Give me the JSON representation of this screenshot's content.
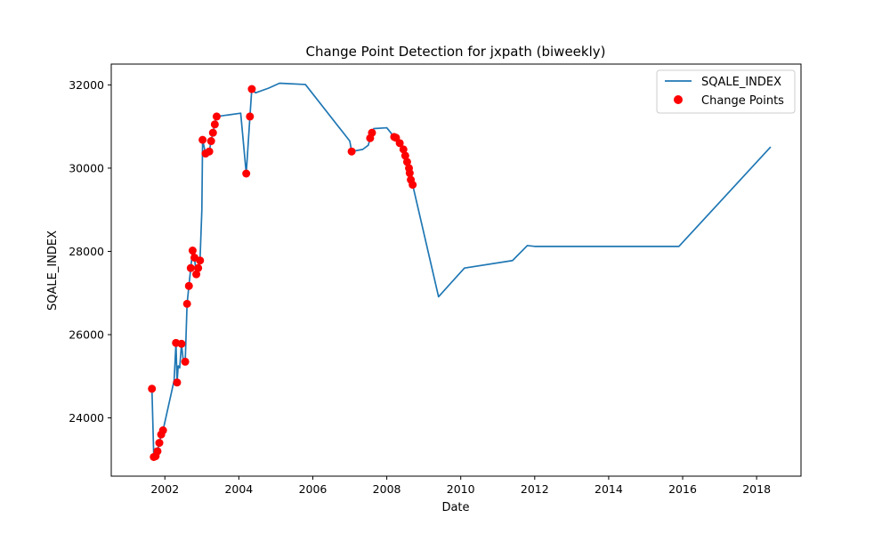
{
  "chart_data": {
    "type": "line",
    "title": "Change Point Detection for jxpath (biweekly)",
    "xlabel": "Date",
    "ylabel": "SQALE_INDEX",
    "xlim": [
      2000.55,
      2019.2
    ],
    "ylim": [
      22600,
      32500
    ],
    "x_ticks": [
      2002,
      2004,
      2006,
      2008,
      2010,
      2012,
      2014,
      2016,
      2018
    ],
    "y_ticks": [
      24000,
      26000,
      28000,
      30000,
      32000
    ],
    "grid": false,
    "legend_position": "top-right",
    "series": [
      {
        "name": "SQALE_INDEX",
        "kind": "line",
        "color": "#1f77b4",
        "points": [
          [
            2001.65,
            24700
          ],
          [
            2001.7,
            23060
          ],
          [
            2001.75,
            23080
          ],
          [
            2001.8,
            23200
          ],
          [
            2001.85,
            23400
          ],
          [
            2001.9,
            23600
          ],
          [
            2001.95,
            23700
          ],
          [
            2002.25,
            24900
          ],
          [
            2002.3,
            25800
          ],
          [
            2002.33,
            24850
          ],
          [
            2002.36,
            25250
          ],
          [
            2002.4,
            25200
          ],
          [
            2002.45,
            25780
          ],
          [
            2002.5,
            25350
          ],
          [
            2002.55,
            25350
          ],
          [
            2002.6,
            26740
          ],
          [
            2002.65,
            27170
          ],
          [
            2002.7,
            27600
          ],
          [
            2002.75,
            28020
          ],
          [
            2002.8,
            27850
          ],
          [
            2002.85,
            27450
          ],
          [
            2002.9,
            27600
          ],
          [
            2002.95,
            27780
          ],
          [
            2003.0,
            29000
          ],
          [
            2003.02,
            30680
          ],
          [
            2003.1,
            30350
          ],
          [
            2003.2,
            30400
          ],
          [
            2003.25,
            30650
          ],
          [
            2003.3,
            30850
          ],
          [
            2003.35,
            31050
          ],
          [
            2003.4,
            31240
          ],
          [
            2004.05,
            31320
          ],
          [
            2004.2,
            29870
          ],
          [
            2004.3,
            31240
          ],
          [
            2004.35,
            31900
          ],
          [
            2004.45,
            31810
          ],
          [
            2004.8,
            31920
          ],
          [
            2005.1,
            32040
          ],
          [
            2005.8,
            32010
          ],
          [
            2007.0,
            30650
          ],
          [
            2007.05,
            30400
          ],
          [
            2007.35,
            30450
          ],
          [
            2007.5,
            30550
          ],
          [
            2007.55,
            30720
          ],
          [
            2007.6,
            30850
          ],
          [
            2007.65,
            30950
          ],
          [
            2008.0,
            30970
          ],
          [
            2008.2,
            30750
          ],
          [
            2008.25,
            30730
          ],
          [
            2008.35,
            30600
          ],
          [
            2008.45,
            30450
          ],
          [
            2008.5,
            30300
          ],
          [
            2008.55,
            30150
          ],
          [
            2008.6,
            30000
          ],
          [
            2008.62,
            29880
          ],
          [
            2008.65,
            29720
          ],
          [
            2008.7,
            29600
          ],
          [
            2009.4,
            26910
          ],
          [
            2010.1,
            27600
          ],
          [
            2011.4,
            27780
          ],
          [
            2011.8,
            28140
          ],
          [
            2012.0,
            28120
          ],
          [
            2015.9,
            28120
          ],
          [
            2018.38,
            30510
          ]
        ]
      },
      {
        "name": "Change Points",
        "kind": "scatter",
        "color": "#ff0000",
        "points": [
          [
            2001.65,
            24700
          ],
          [
            2001.7,
            23060
          ],
          [
            2001.75,
            23080
          ],
          [
            2001.8,
            23200
          ],
          [
            2001.85,
            23400
          ],
          [
            2001.9,
            23600
          ],
          [
            2001.95,
            23700
          ],
          [
            2002.3,
            25800
          ],
          [
            2002.33,
            24850
          ],
          [
            2002.45,
            25780
          ],
          [
            2002.55,
            25350
          ],
          [
            2002.6,
            26740
          ],
          [
            2002.65,
            27170
          ],
          [
            2002.7,
            27600
          ],
          [
            2002.75,
            28020
          ],
          [
            2002.8,
            27850
          ],
          [
            2002.85,
            27450
          ],
          [
            2002.9,
            27600
          ],
          [
            2002.95,
            27780
          ],
          [
            2003.02,
            30680
          ],
          [
            2003.1,
            30350
          ],
          [
            2003.2,
            30400
          ],
          [
            2003.25,
            30650
          ],
          [
            2003.3,
            30850
          ],
          [
            2003.35,
            31050
          ],
          [
            2003.4,
            31240
          ],
          [
            2004.2,
            29870
          ],
          [
            2004.3,
            31240
          ],
          [
            2004.35,
            31900
          ],
          [
            2007.05,
            30400
          ],
          [
            2007.55,
            30720
          ],
          [
            2007.6,
            30850
          ],
          [
            2008.2,
            30750
          ],
          [
            2008.25,
            30730
          ],
          [
            2008.35,
            30600
          ],
          [
            2008.45,
            30450
          ],
          [
            2008.5,
            30300
          ],
          [
            2008.55,
            30150
          ],
          [
            2008.6,
            30000
          ],
          [
            2008.62,
            29880
          ],
          [
            2008.65,
            29720
          ],
          [
            2008.7,
            29600
          ]
        ]
      }
    ]
  }
}
